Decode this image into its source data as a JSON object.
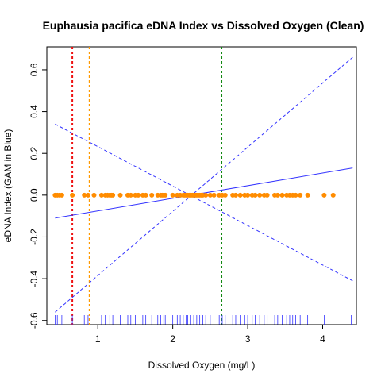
{
  "chart_data": {
    "type": "scatter",
    "title": "Euphausia pacifica eDNA Index vs Dissolved Oxygen (Clean)",
    "xlabel": "Dissolved Oxygen (mg/L)",
    "ylabel": "eDNA Index (GAM in Blue)",
    "xlim": [
      0.32,
      4.45
    ],
    "ylim": [
      -0.62,
      0.71
    ],
    "x_ticks": [
      1,
      2,
      3,
      4
    ],
    "x_tick_labels": [
      "1",
      "2",
      "3",
      "4"
    ],
    "y_ticks": [
      -0.6,
      -0.4,
      -0.2,
      0.0,
      0.2,
      0.4,
      0.6
    ],
    "y_tick_labels": [
      "-0.6",
      "-0.4",
      "-0.2",
      "0.0",
      "0.2",
      "0.4",
      "0.6"
    ],
    "grid": false,
    "points": {
      "color": "#FF8C00",
      "y": 0.0,
      "x": [
        0.43,
        0.46,
        0.49,
        0.52,
        0.66,
        0.82,
        0.87,
        0.95,
        1.05,
        1.1,
        1.13,
        1.16,
        1.18,
        1.2,
        1.3,
        1.4,
        1.44,
        1.5,
        1.54,
        1.6,
        1.64,
        1.72,
        1.8,
        1.84,
        1.86,
        1.88,
        1.9,
        2.0,
        2.06,
        2.1,
        2.14,
        2.16,
        2.18,
        2.2,
        2.22,
        2.24,
        2.26,
        2.28,
        2.3,
        2.32,
        2.34,
        2.36,
        2.38,
        2.4,
        2.44,
        2.5,
        2.55,
        2.62,
        2.66,
        2.7,
        2.8,
        2.84,
        2.9,
        2.96,
        3.0,
        3.06,
        3.1,
        3.16,
        3.22,
        3.26,
        3.36,
        3.4,
        3.46,
        3.52,
        3.56,
        3.6,
        3.64,
        3.7,
        3.8,
        4.02,
        4.14
      ]
    },
    "gam_fit": {
      "color": "#3333FF",
      "x": [
        0.43,
        4.4
      ],
      "y": [
        -0.11,
        0.13
      ]
    },
    "confidence_bands": [
      {
        "color": "#3333FF",
        "style": "dashed",
        "x": [
          0.43,
          4.4
        ],
        "y": [
          -0.56,
          0.66
        ]
      },
      {
        "color": "#3333FF",
        "style": "dashed",
        "x": [
          0.43,
          4.4
        ],
        "y": [
          0.34,
          -0.41
        ]
      }
    ],
    "vertical_lines": [
      {
        "x": 0.66,
        "color": "#EE1111",
        "style": "dashed"
      },
      {
        "x": 0.89,
        "color": "#FF9900",
        "style": "dashed"
      },
      {
        "x": 2.65,
        "color": "#118811",
        "style": "dashed"
      }
    ],
    "rug": {
      "color": "#3333FF",
      "x": [
        0.43,
        0.46,
        0.52,
        0.66,
        0.82,
        0.87,
        0.95,
        1.05,
        1.1,
        1.16,
        1.2,
        1.3,
        1.4,
        1.44,
        1.5,
        1.6,
        1.64,
        1.72,
        1.8,
        1.84,
        1.88,
        1.9,
        2.0,
        2.06,
        2.1,
        2.14,
        2.18,
        2.2,
        2.24,
        2.28,
        2.32,
        2.36,
        2.4,
        2.44,
        2.5,
        2.55,
        2.62,
        2.66,
        2.7,
        2.8,
        2.84,
        2.9,
        2.96,
        3.0,
        3.06,
        3.1,
        3.16,
        3.22,
        3.26,
        3.36,
        3.4,
        3.46,
        3.52,
        3.56,
        3.6,
        3.64,
        3.7,
        3.8,
        4.02,
        4.38
      ]
    }
  }
}
